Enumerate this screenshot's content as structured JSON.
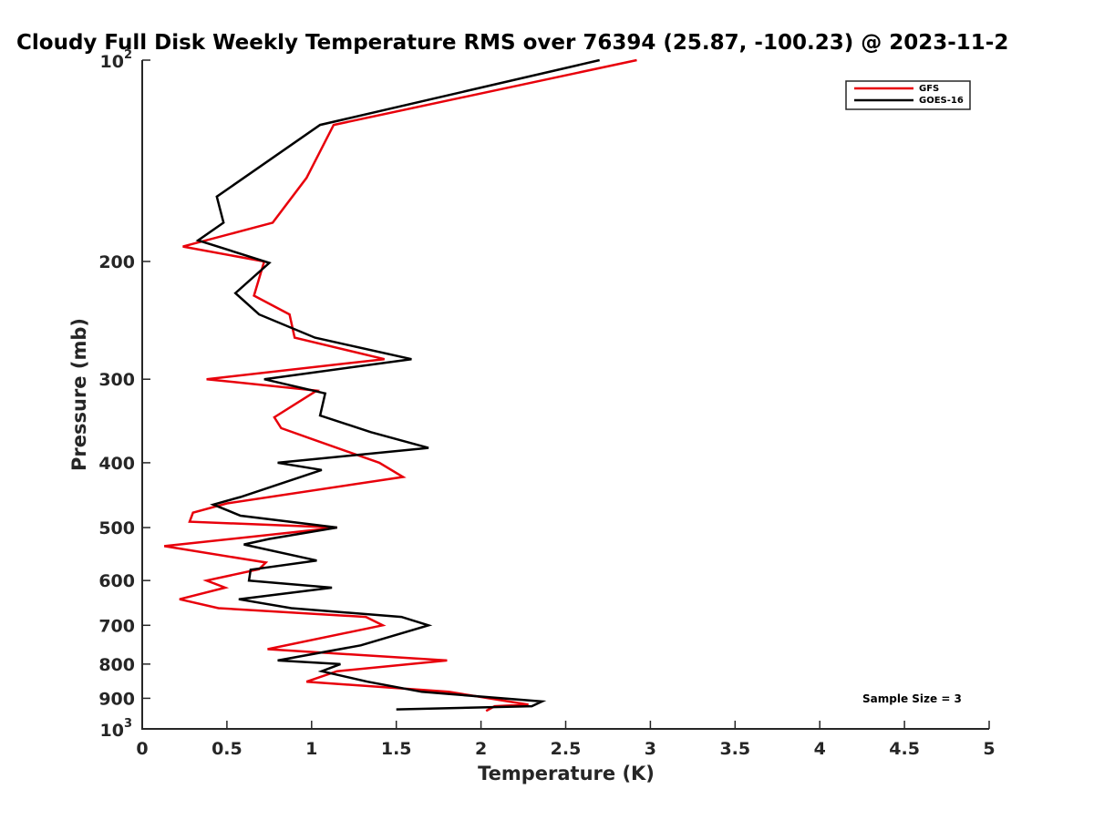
{
  "chart_data": {
    "type": "line",
    "title": "Cloudy Full Disk Weekly Temperature RMS over 76394 (25.87, -100.23) @ 2023-11-2",
    "xlabel": "Temperature (K)",
    "ylabel": "Pressure (mb)",
    "xlim": [
      0,
      5
    ],
    "ylim": [
      1000,
      100
    ],
    "y_scale": "log",
    "y_reversed": true,
    "grid": false,
    "legend_position": "top-right",
    "x_ticks": [
      "0",
      "0.5",
      "1",
      "1.5",
      "2",
      "2.5",
      "3",
      "3.5",
      "4",
      "4.5",
      "5"
    ],
    "y_ticks": [
      {
        "value": 100,
        "label": "10",
        "sup": "2"
      },
      {
        "value": 200,
        "label": "200",
        "sup": ""
      },
      {
        "value": 300,
        "label": "300",
        "sup": ""
      },
      {
        "value": 400,
        "label": "400",
        "sup": ""
      },
      {
        "value": 500,
        "label": "500",
        "sup": ""
      },
      {
        "value": 600,
        "label": "600",
        "sup": ""
      },
      {
        "value": 700,
        "label": "700",
        "sup": ""
      },
      {
        "value": 800,
        "label": "800",
        "sup": ""
      },
      {
        "value": 900,
        "label": "900",
        "sup": ""
      },
      {
        "value": 1000,
        "label": "10",
        "sup": "3"
      }
    ],
    "series": [
      {
        "name": "GFS",
        "color": "#e8000b",
        "points": [
          [
            2.92,
            100
          ],
          [
            1.13,
            125
          ],
          [
            0.97,
            150
          ],
          [
            0.77,
            175
          ],
          [
            0.24,
            190
          ],
          [
            0.72,
            200
          ],
          [
            0.66,
            225
          ],
          [
            0.87,
            240
          ],
          [
            0.9,
            260
          ],
          [
            1.43,
            280
          ],
          [
            0.38,
            300
          ],
          [
            1.03,
            312
          ],
          [
            0.78,
            342
          ],
          [
            0.82,
            355
          ],
          [
            1.02,
            370
          ],
          [
            1.4,
            400
          ],
          [
            1.54,
            420
          ],
          [
            0.5,
            460
          ],
          [
            0.3,
            475
          ],
          [
            0.28,
            490
          ],
          [
            1.15,
            500
          ],
          [
            0.13,
            533
          ],
          [
            0.73,
            564
          ],
          [
            0.69,
            577
          ],
          [
            0.38,
            600
          ],
          [
            0.49,
            615
          ],
          [
            0.22,
            640
          ],
          [
            0.45,
            660
          ],
          [
            1.32,
            680
          ],
          [
            1.42,
            700
          ],
          [
            0.74,
            760
          ],
          [
            1.8,
            790
          ],
          [
            1.15,
            820
          ],
          [
            0.97,
            850
          ],
          [
            1.81,
            880
          ],
          [
            2.28,
            920
          ],
          [
            2.08,
            925
          ],
          [
            2.03,
            940
          ]
        ]
      },
      {
        "name": "GOES-16",
        "color": "#000000",
        "points": [
          [
            2.7,
            100
          ],
          [
            1.05,
            125
          ],
          [
            0.44,
            160
          ],
          [
            0.48,
            175
          ],
          [
            0.33,
            186
          ],
          [
            0.75,
            201
          ],
          [
            0.55,
            223
          ],
          [
            0.69,
            240
          ],
          [
            1.02,
            260
          ],
          [
            1.59,
            280
          ],
          [
            0.72,
            300
          ],
          [
            1.08,
            315
          ],
          [
            1.05,
            340
          ],
          [
            1.35,
            360
          ],
          [
            1.69,
            380
          ],
          [
            0.8,
            400
          ],
          [
            1.06,
            410
          ],
          [
            0.58,
            450
          ],
          [
            0.42,
            462
          ],
          [
            0.58,
            480
          ],
          [
            1.15,
            500
          ],
          [
            0.75,
            520
          ],
          [
            0.6,
            530
          ],
          [
            1.03,
            560
          ],
          [
            0.64,
            578
          ],
          [
            0.63,
            600
          ],
          [
            1.12,
            615
          ],
          [
            0.57,
            640
          ],
          [
            0.88,
            660
          ],
          [
            1.53,
            680
          ],
          [
            1.69,
            700
          ],
          [
            1.29,
            750
          ],
          [
            0.8,
            790
          ],
          [
            1.17,
            800
          ],
          [
            1.06,
            820
          ],
          [
            1.33,
            850
          ],
          [
            1.65,
            880
          ],
          [
            2.36,
            910
          ],
          [
            2.3,
            925
          ],
          [
            1.5,
            935
          ]
        ]
      }
    ],
    "annotation": "Sample Size = 3"
  }
}
